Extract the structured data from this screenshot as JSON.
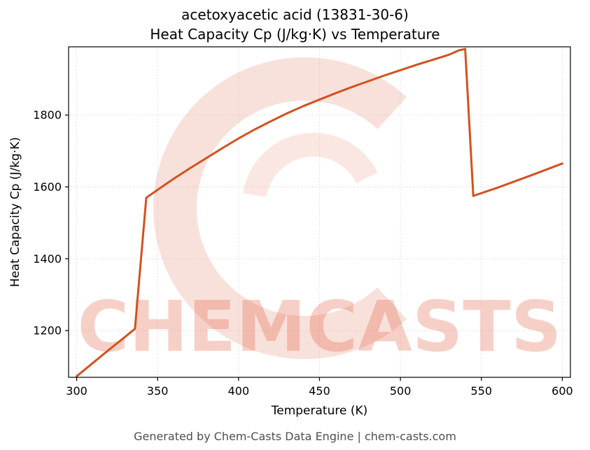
{
  "footer": {
    "text": "Generated by Chem-Casts Data Engine | chem-casts.com"
  },
  "watermark": {
    "text": "CHEMCASTS",
    "color": "#e0593a",
    "text_opacity": 0.28,
    "logo_opacity": 0.18
  },
  "colors": {
    "line": "#d2521e",
    "grid": "#c9c9c9",
    "spine": "#000000",
    "tick_label": "#000000",
    "footer_text": "#4f4f4f"
  },
  "chart_data": {
    "type": "line",
    "title_line1": "acetoxyacetic acid (13831-30-6)",
    "title_line2": "Heat Capacity Cp (J/kg·K) vs Temperature",
    "xlabel": "Temperature (K)",
    "ylabel": "Heat Capacity Cp (J/kg·K)",
    "xlim": [
      295,
      605
    ],
    "ylim": [
      1070,
      1990
    ],
    "xticks": [
      300,
      350,
      400,
      450,
      500,
      550,
      600
    ],
    "yticks": [
      1200,
      1400,
      1600,
      1800
    ],
    "grid": true,
    "legend_visible": false,
    "series": [
      {
        "name": "Heat Capacity Cp",
        "color": "#d2521e",
        "points": [
          [
            300,
            1073
          ],
          [
            310,
            1110
          ],
          [
            320,
            1147
          ],
          [
            330,
            1183
          ],
          [
            336,
            1205
          ],
          [
            343,
            1570
          ],
          [
            350,
            1592
          ],
          [
            360,
            1623
          ],
          [
            370,
            1652
          ],
          [
            380,
            1680
          ],
          [
            390,
            1708
          ],
          [
            400,
            1735
          ],
          [
            410,
            1760
          ],
          [
            420,
            1783
          ],
          [
            430,
            1805
          ],
          [
            440,
            1825
          ],
          [
            450,
            1843
          ],
          [
            460,
            1861
          ],
          [
            470,
            1878
          ],
          [
            480,
            1894
          ],
          [
            490,
            1910
          ],
          [
            500,
            1925
          ],
          [
            510,
            1940
          ],
          [
            520,
            1954
          ],
          [
            530,
            1968
          ],
          [
            536,
            1980
          ],
          [
            540,
            1984
          ],
          [
            545,
            1575
          ],
          [
            560,
            1598
          ],
          [
            580,
            1631
          ],
          [
            600,
            1665
          ]
        ]
      }
    ]
  }
}
